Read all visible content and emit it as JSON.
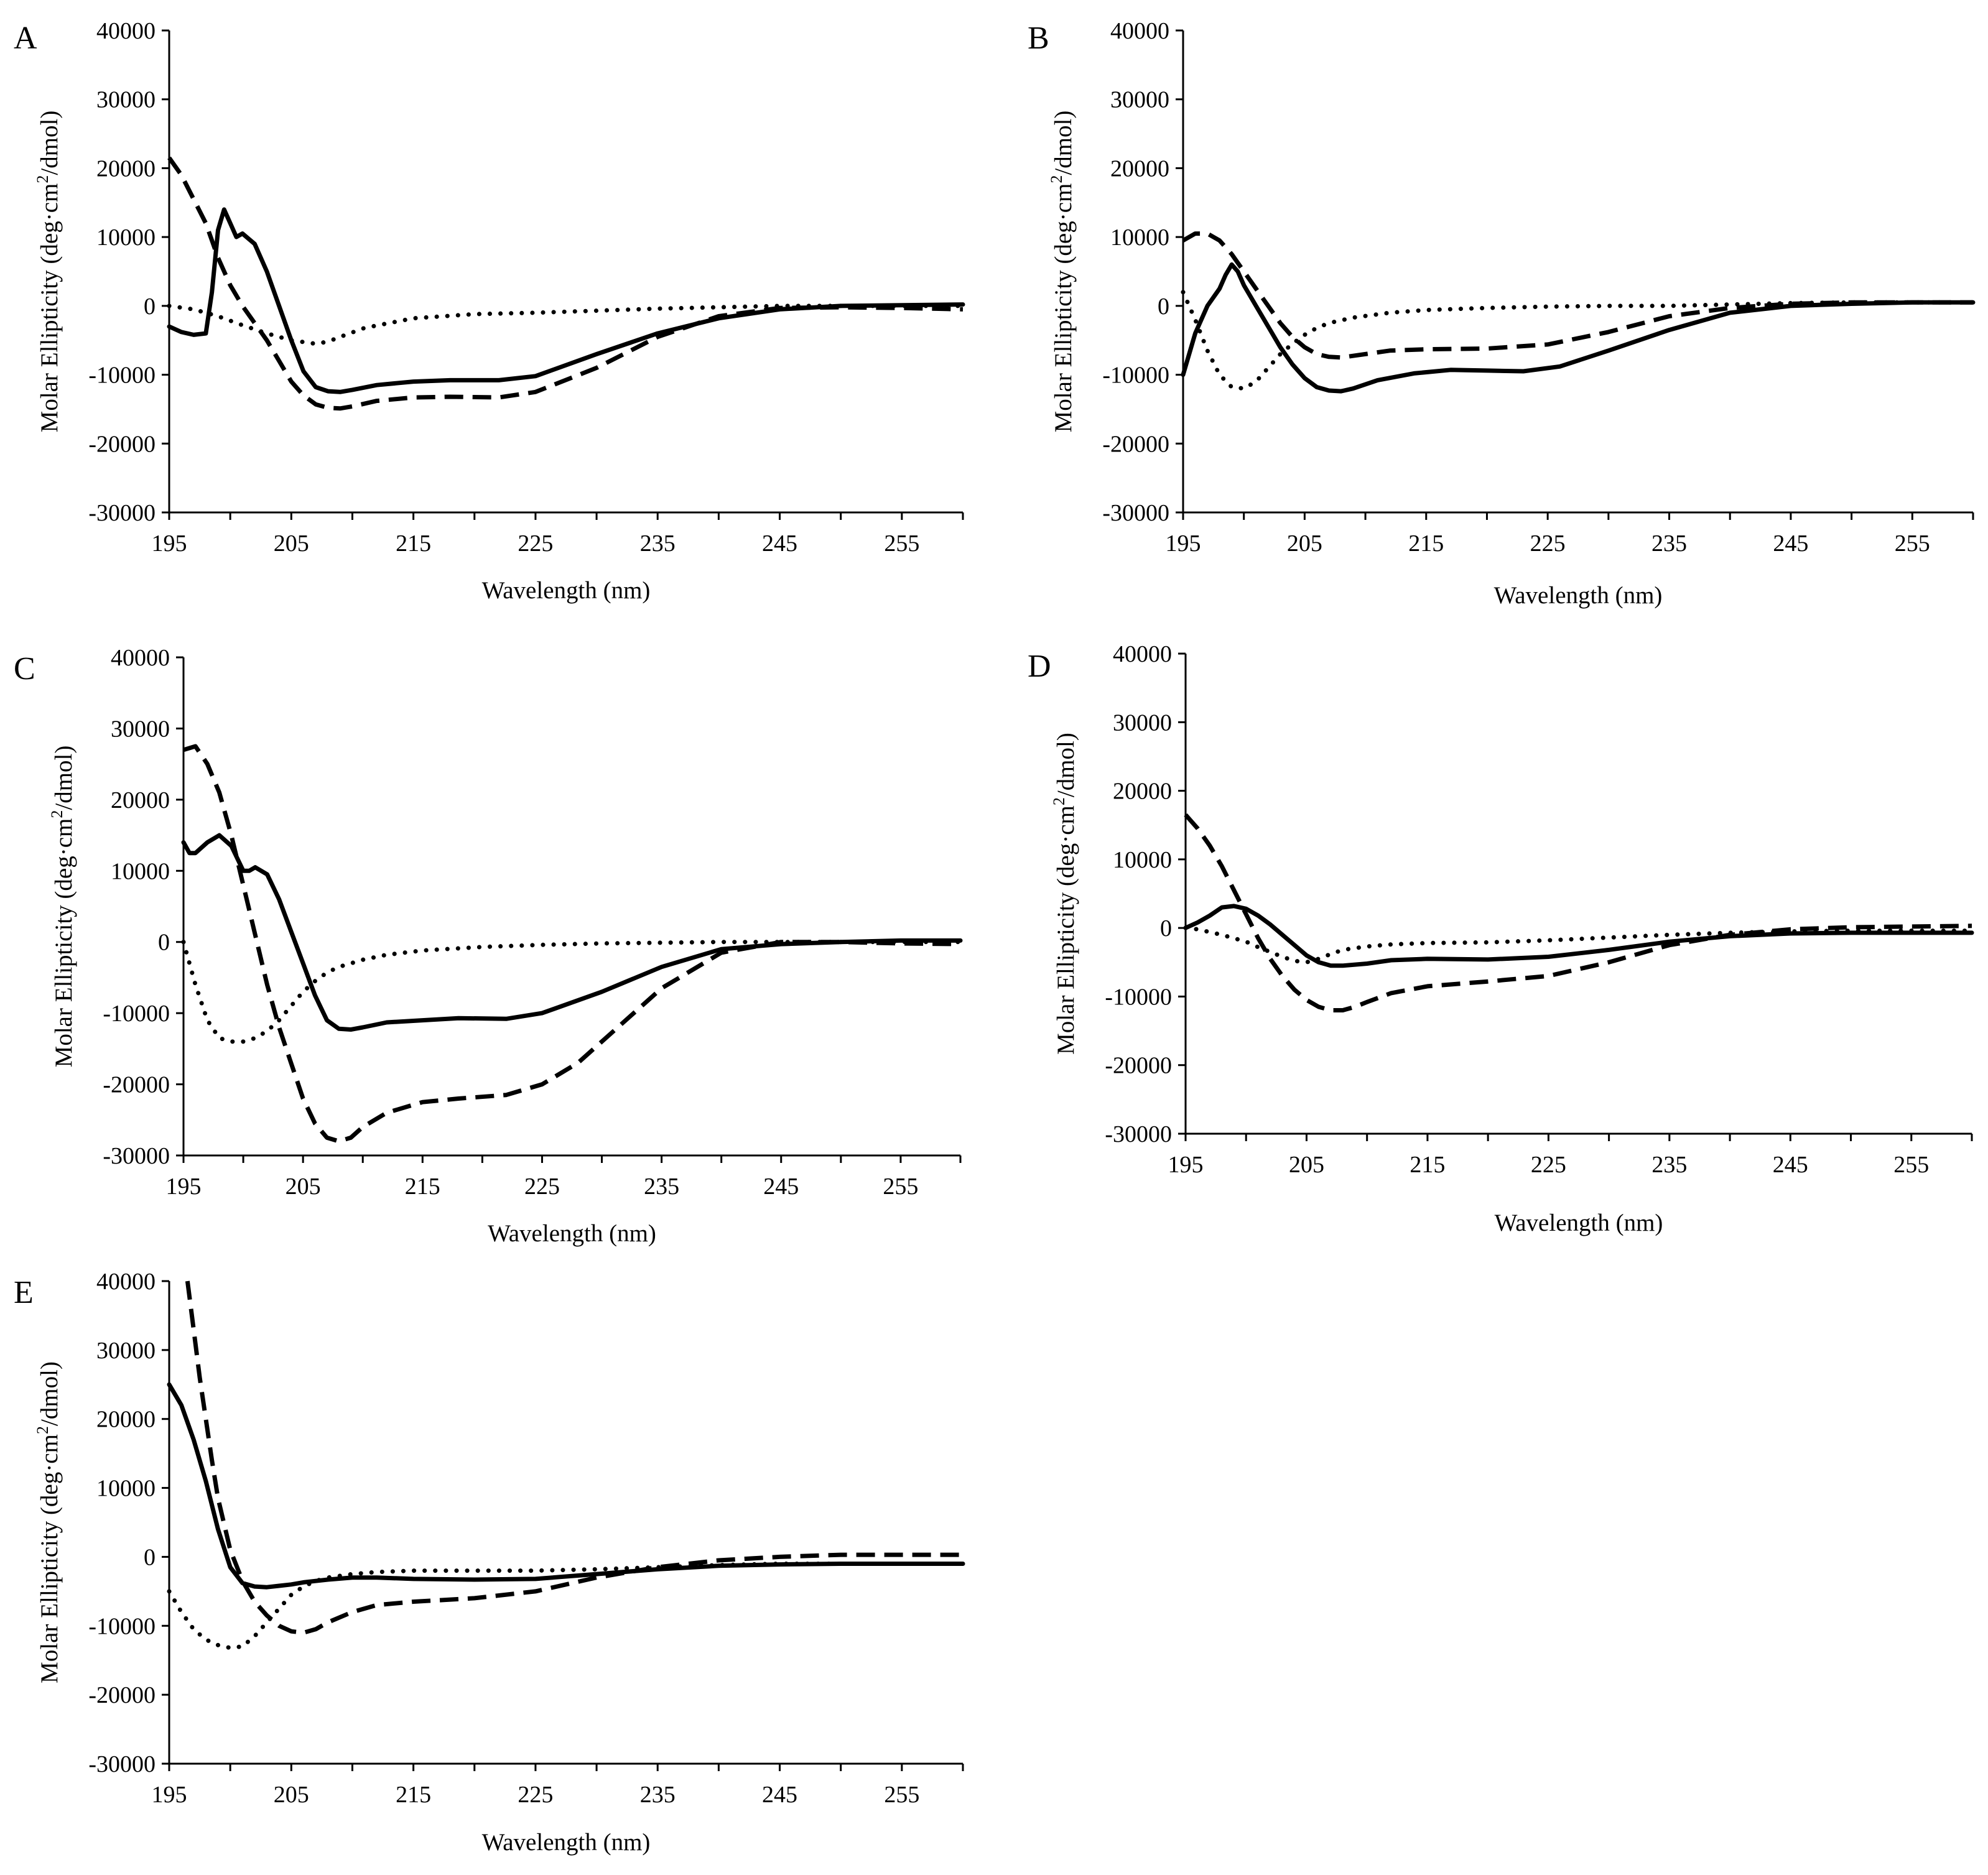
{
  "chart_data": [
    {
      "type": "line",
      "panel_label": "A",
      "xlabel": "Wavelength  (nm)",
      "ylabel": "Molar Ellipticity  (deg·cm²/dmol)",
      "ylabel_main": "Molar Ellipticity  (deg·cm",
      "ylabel_sup": "2",
      "ylabel_end": "/dmol)",
      "xlim": [
        195,
        260
      ],
      "ylim": [
        -30000,
        40000
      ],
      "xticks": [
        "195",
        "205",
        "215",
        "225",
        "235",
        "245",
        "255"
      ],
      "yticks": [
        "-30000",
        "-20000",
        "-10000",
        "0",
        "10000",
        "20000",
        "30000",
        "40000"
      ],
      "series": [
        {
          "style": "solid",
          "x": [
            195,
            196,
            197,
            198,
            198.5,
            199,
            199.5,
            200,
            200.5,
            201,
            202,
            203,
            204,
            205,
            206,
            207,
            208,
            209,
            210,
            212,
            215,
            218,
            222,
            225,
            230,
            235,
            240,
            245,
            250,
            255,
            260
          ],
          "y": [
            -3000,
            -3800,
            -4200,
            -4000,
            2000,
            11000,
            14000,
            12000,
            10000,
            10500,
            9000,
            5000,
            0,
            -5000,
            -9500,
            -11800,
            -12400,
            -12500,
            -12200,
            -11500,
            -11000,
            -10800,
            -10800,
            -10200,
            -7000,
            -4000,
            -1800,
            -500,
            0,
            100,
            200
          ]
        },
        {
          "style": "dashed",
          "x": [
            195,
            196,
            197,
            198,
            199,
            200,
            201,
            202,
            203,
            204,
            205,
            206,
            207,
            208,
            209,
            210,
            212,
            215,
            218,
            222,
            225,
            230,
            235,
            240,
            245,
            250,
            255,
            260
          ],
          "y": [
            21500,
            19000,
            15500,
            12000,
            7000,
            3000,
            0,
            -2500,
            -5000,
            -8000,
            -11000,
            -13000,
            -14300,
            -14800,
            -14900,
            -14600,
            -13800,
            -13300,
            -13200,
            -13300,
            -12500,
            -9000,
            -4500,
            -1500,
            -300,
            -200,
            -300,
            -500
          ]
        },
        {
          "style": "dotted",
          "x": [
            195,
            197,
            199,
            201,
            203,
            205,
            207,
            208,
            209,
            211,
            215,
            220,
            225,
            230,
            235,
            240,
            245,
            250,
            255,
            260
          ],
          "y": [
            0,
            -500,
            -1500,
            -2800,
            -4000,
            -5000,
            -5500,
            -5200,
            -4500,
            -3200,
            -1800,
            -1200,
            -1000,
            -700,
            -400,
            -200,
            0,
            0,
            0,
            0
          ]
        }
      ]
    },
    {
      "type": "line",
      "panel_label": "B",
      "xlabel": "Wavelength  (nm)",
      "ylabel": "Molar Ellipticity  (deg·cm²/dmol)",
      "ylabel_main": "Molar Ellipticity  (deg·cm",
      "ylabel_sup": "2",
      "ylabel_end": "/dmol)",
      "xlim": [
        195,
        260
      ],
      "ylim": [
        -30000,
        40000
      ],
      "xticks": [
        "195",
        "205",
        "215",
        "225",
        "235",
        "245",
        "255"
      ],
      "yticks": [
        "-30000",
        "-20000",
        "-10000",
        "0",
        "10000",
        "20000",
        "30000",
        "40000"
      ],
      "series": [
        {
          "style": "solid",
          "x": [
            195,
            196,
            197,
            198,
            198.5,
            199,
            199.5,
            200,
            201,
            202,
            203,
            204,
            205,
            206,
            207,
            208,
            209,
            211,
            214,
            217,
            220,
            223,
            226,
            230,
            235,
            240,
            245,
            250,
            255,
            260
          ],
          "y": [
            -10000,
            -4000,
            0,
            2500,
            4500,
            6000,
            5000,
            3000,
            0,
            -3000,
            -6000,
            -8500,
            -10500,
            -11800,
            -12300,
            -12400,
            -12000,
            -10800,
            -9800,
            -9300,
            -9400,
            -9500,
            -8800,
            -6500,
            -3500,
            -1000,
            0,
            300,
            500,
            500
          ]
        },
        {
          "style": "dashed",
          "x": [
            195,
            196,
            197,
            198,
            199,
            200,
            201,
            202,
            203,
            204,
            205,
            206,
            207,
            208,
            210,
            212,
            215,
            220,
            225,
            230,
            235,
            240,
            245,
            250,
            255,
            260
          ],
          "y": [
            9500,
            10500,
            10500,
            9500,
            7500,
            5000,
            2500,
            0,
            -2500,
            -4500,
            -6000,
            -7000,
            -7400,
            -7500,
            -7000,
            -6500,
            -6300,
            -6200,
            -5600,
            -3800,
            -1500,
            -300,
            300,
            500,
            500,
            500
          ]
        },
        {
          "style": "dotted",
          "x": [
            195,
            196,
            197,
            198,
            199,
            200,
            201,
            202,
            203,
            204,
            205,
            206,
            207,
            209,
            212,
            215,
            220,
            225,
            230,
            235,
            240,
            245,
            250,
            255,
            260
          ],
          "y": [
            2000,
            -2000,
            -6500,
            -10000,
            -11800,
            -12000,
            -11000,
            -9000,
            -7000,
            -5500,
            -4200,
            -3200,
            -2500,
            -1700,
            -1000,
            -600,
            -300,
            -100,
            0,
            0,
            200,
            400,
            500,
            500,
            500
          ]
        }
      ]
    },
    {
      "type": "line",
      "panel_label": "C",
      "xlabel": "Wavelength  (nm)",
      "ylabel": "Molar Ellipticity  (deg·cm²/dmol)",
      "ylabel_main": "Molar Ellipticity  (deg·cm",
      "ylabel_sup": "2",
      "ylabel_end": "/dmol)",
      "xlim": [
        195,
        260
      ],
      "ylim": [
        -30000,
        40000
      ],
      "xticks": [
        "195",
        "205",
        "215",
        "225",
        "235",
        "245",
        "255"
      ],
      "yticks": [
        "-30000",
        "-20000",
        "-10000",
        "0",
        "10000",
        "20000",
        "30000",
        "40000"
      ],
      "series": [
        {
          "style": "solid",
          "x": [
            195,
            195.5,
            196,
            197,
            198,
            199,
            200,
            200.5,
            201,
            202,
            203,
            204,
            205,
            206,
            207,
            208,
            209,
            210,
            212,
            215,
            218,
            222,
            225,
            230,
            235,
            240,
            245,
            250,
            255,
            260
          ],
          "y": [
            14000,
            12500,
            12500,
            14000,
            15000,
            13500,
            10000,
            10000,
            10500,
            9500,
            6000,
            1500,
            -3000,
            -7500,
            -11000,
            -12200,
            -12300,
            -12000,
            -11300,
            -11000,
            -10700,
            -10800,
            -10000,
            -7000,
            -3500,
            -1000,
            -300,
            0,
            200,
            200
          ]
        },
        {
          "style": "dashed",
          "x": [
            195,
            196,
            197,
            198,
            199,
            200,
            201,
            202,
            203,
            204,
            205,
            206,
            207,
            208,
            209,
            210,
            212,
            215,
            218,
            222,
            225,
            228,
            230,
            235,
            240,
            245,
            250,
            255,
            260
          ],
          "y": [
            27000,
            27500,
            25000,
            21000,
            15000,
            8000,
            1000,
            -6000,
            -12000,
            -17000,
            -22000,
            -25500,
            -27500,
            -28000,
            -27500,
            -26000,
            -24000,
            -22500,
            -22000,
            -21500,
            -20000,
            -17000,
            -14000,
            -6500,
            -1500,
            0,
            0,
            -200,
            -300
          ]
        },
        {
          "style": "dotted",
          "x": [
            195,
            196,
            197,
            198,
            199,
            200,
            201,
            202,
            203,
            204,
            205,
            206,
            207,
            208,
            210,
            212,
            215,
            220,
            225,
            230,
            235,
            240,
            245,
            250,
            255,
            260
          ],
          "y": [
            0,
            -6000,
            -11000,
            -13500,
            -14000,
            -14000,
            -13500,
            -12500,
            -11000,
            -9000,
            -7000,
            -5500,
            -4300,
            -3500,
            -2500,
            -1800,
            -1200,
            -700,
            -400,
            -200,
            -100,
            0,
            0,
            0,
            0,
            0
          ]
        }
      ]
    },
    {
      "type": "line",
      "panel_label": "D",
      "xlabel": "Wavelength  (nm)",
      "ylabel": "Molar Ellipticity  (deg·cm²/dmol)",
      "ylabel_main": "Molar Ellipticity  (deg·cm",
      "ylabel_sup": "2",
      "ylabel_end": "/dmol)",
      "xlim": [
        195,
        260
      ],
      "ylim": [
        -30000,
        40000
      ],
      "xticks": [
        "195",
        "205",
        "215",
        "225",
        "235",
        "245",
        "255"
      ],
      "yticks": [
        "-30000",
        "-20000",
        "-10000",
        "0",
        "10000",
        "20000",
        "30000",
        "40000"
      ],
      "series": [
        {
          "style": "solid",
          "x": [
            195,
            196,
            197,
            198,
            199,
            200,
            201,
            202,
            203,
            204,
            205,
            206,
            207,
            208,
            210,
            212,
            215,
            220,
            225,
            230,
            235,
            240,
            245,
            250,
            255,
            260
          ],
          "y": [
            0,
            800,
            1800,
            3000,
            3200,
            2800,
            1800,
            500,
            -1000,
            -2500,
            -4000,
            -5000,
            -5500,
            -5500,
            -5200,
            -4700,
            -4500,
            -4600,
            -4200,
            -3200,
            -2000,
            -1200,
            -800,
            -700,
            -700,
            -700
          ]
        },
        {
          "style": "dashed",
          "x": [
            195,
            196,
            197,
            198,
            199,
            200,
            201,
            202,
            203,
            204,
            205,
            206,
            207,
            208,
            209,
            210,
            212,
            215,
            220,
            225,
            230,
            235,
            240,
            245,
            250,
            255,
            260
          ],
          "y": [
            16500,
            14500,
            12000,
            9000,
            5500,
            2000,
            -1500,
            -4500,
            -7000,
            -9000,
            -10500,
            -11500,
            -12000,
            -12000,
            -11500,
            -10800,
            -9500,
            -8500,
            -7800,
            -7000,
            -5000,
            -2500,
            -1000,
            -200,
            100,
            200,
            300
          ]
        },
        {
          "style": "dotted",
          "x": [
            195,
            196,
            197,
            198,
            199,
            200,
            201,
            202,
            203,
            204,
            205,
            206,
            207,
            208,
            210,
            212,
            215,
            220,
            225,
            230,
            235,
            240,
            245,
            250,
            255,
            260
          ],
          "y": [
            0,
            -200,
            -600,
            -1000,
            -1500,
            -2000,
            -2800,
            -3500,
            -4200,
            -4800,
            -5000,
            -4500,
            -3800,
            -3200,
            -2700,
            -2400,
            -2200,
            -2100,
            -1800,
            -1400,
            -1000,
            -700,
            -500,
            -400,
            -400,
            -400
          ]
        }
      ]
    },
    {
      "type": "line",
      "panel_label": "E",
      "xlabel": "Wavelength  (nm)",
      "ylabel": "Molar Ellipticity  (deg·cm²/dmol)",
      "ylabel_main": "Molar Ellipticity  (deg·cm",
      "ylabel_sup": "2",
      "ylabel_end": "/dmol)",
      "xlim": [
        195,
        260
      ],
      "ylim": [
        -30000,
        40000
      ],
      "xticks": [
        "195",
        "205",
        "215",
        "225",
        "235",
        "245",
        "255"
      ],
      "yticks": [
        "-30000",
        "-20000",
        "-10000",
        "0",
        "10000",
        "20000",
        "30000",
        "40000"
      ],
      "series": [
        {
          "style": "solid",
          "x": [
            195,
            196,
            197,
            198,
            199,
            200,
            201,
            202,
            203,
            204,
            205,
            206,
            208,
            210,
            212,
            215,
            220,
            225,
            230,
            235,
            240,
            245,
            250,
            255,
            260
          ],
          "y": [
            25000,
            22000,
            17000,
            11000,
            4000,
            -1500,
            -3800,
            -4300,
            -4400,
            -4200,
            -4000,
            -3700,
            -3300,
            -3000,
            -3000,
            -3200,
            -3300,
            -3200,
            -2500,
            -1800,
            -1300,
            -1100,
            -1000,
            -1000,
            -1000
          ]
        },
        {
          "style": "dashed",
          "x": [
            196.5,
            197,
            197.5,
            198,
            198.5,
            199,
            200,
            201,
            202,
            203,
            204,
            205,
            206,
            207,
            208,
            210,
            212,
            215,
            220,
            225,
            230,
            235,
            240,
            245,
            250,
            255,
            260
          ],
          "y": [
            40000,
            33000,
            26000,
            20000,
            14000,
            8500,
            1000,
            -3500,
            -6500,
            -8500,
            -10000,
            -10800,
            -11000,
            -10500,
            -9500,
            -8000,
            -7000,
            -6500,
            -6000,
            -5000,
            -3000,
            -1500,
            -500,
            0,
            300,
            300,
            300
          ]
        },
        {
          "style": "dotted",
          "x": [
            195,
            196,
            197,
            198,
            199,
            200,
            201,
            202,
            203,
            204,
            205,
            206,
            207,
            208,
            210,
            212,
            215,
            220,
            225,
            230,
            235,
            240,
            245,
            250,
            255,
            260
          ],
          "y": [
            -5000,
            -8000,
            -10500,
            -12000,
            -12800,
            -13200,
            -13000,
            -11500,
            -9500,
            -7500,
            -5500,
            -4300,
            -3500,
            -3000,
            -2500,
            -2200,
            -2000,
            -2000,
            -2000,
            -1800,
            -1500,
            -1200,
            -1000,
            -1000,
            -1000,
            -1000
          ]
        }
      ]
    }
  ]
}
